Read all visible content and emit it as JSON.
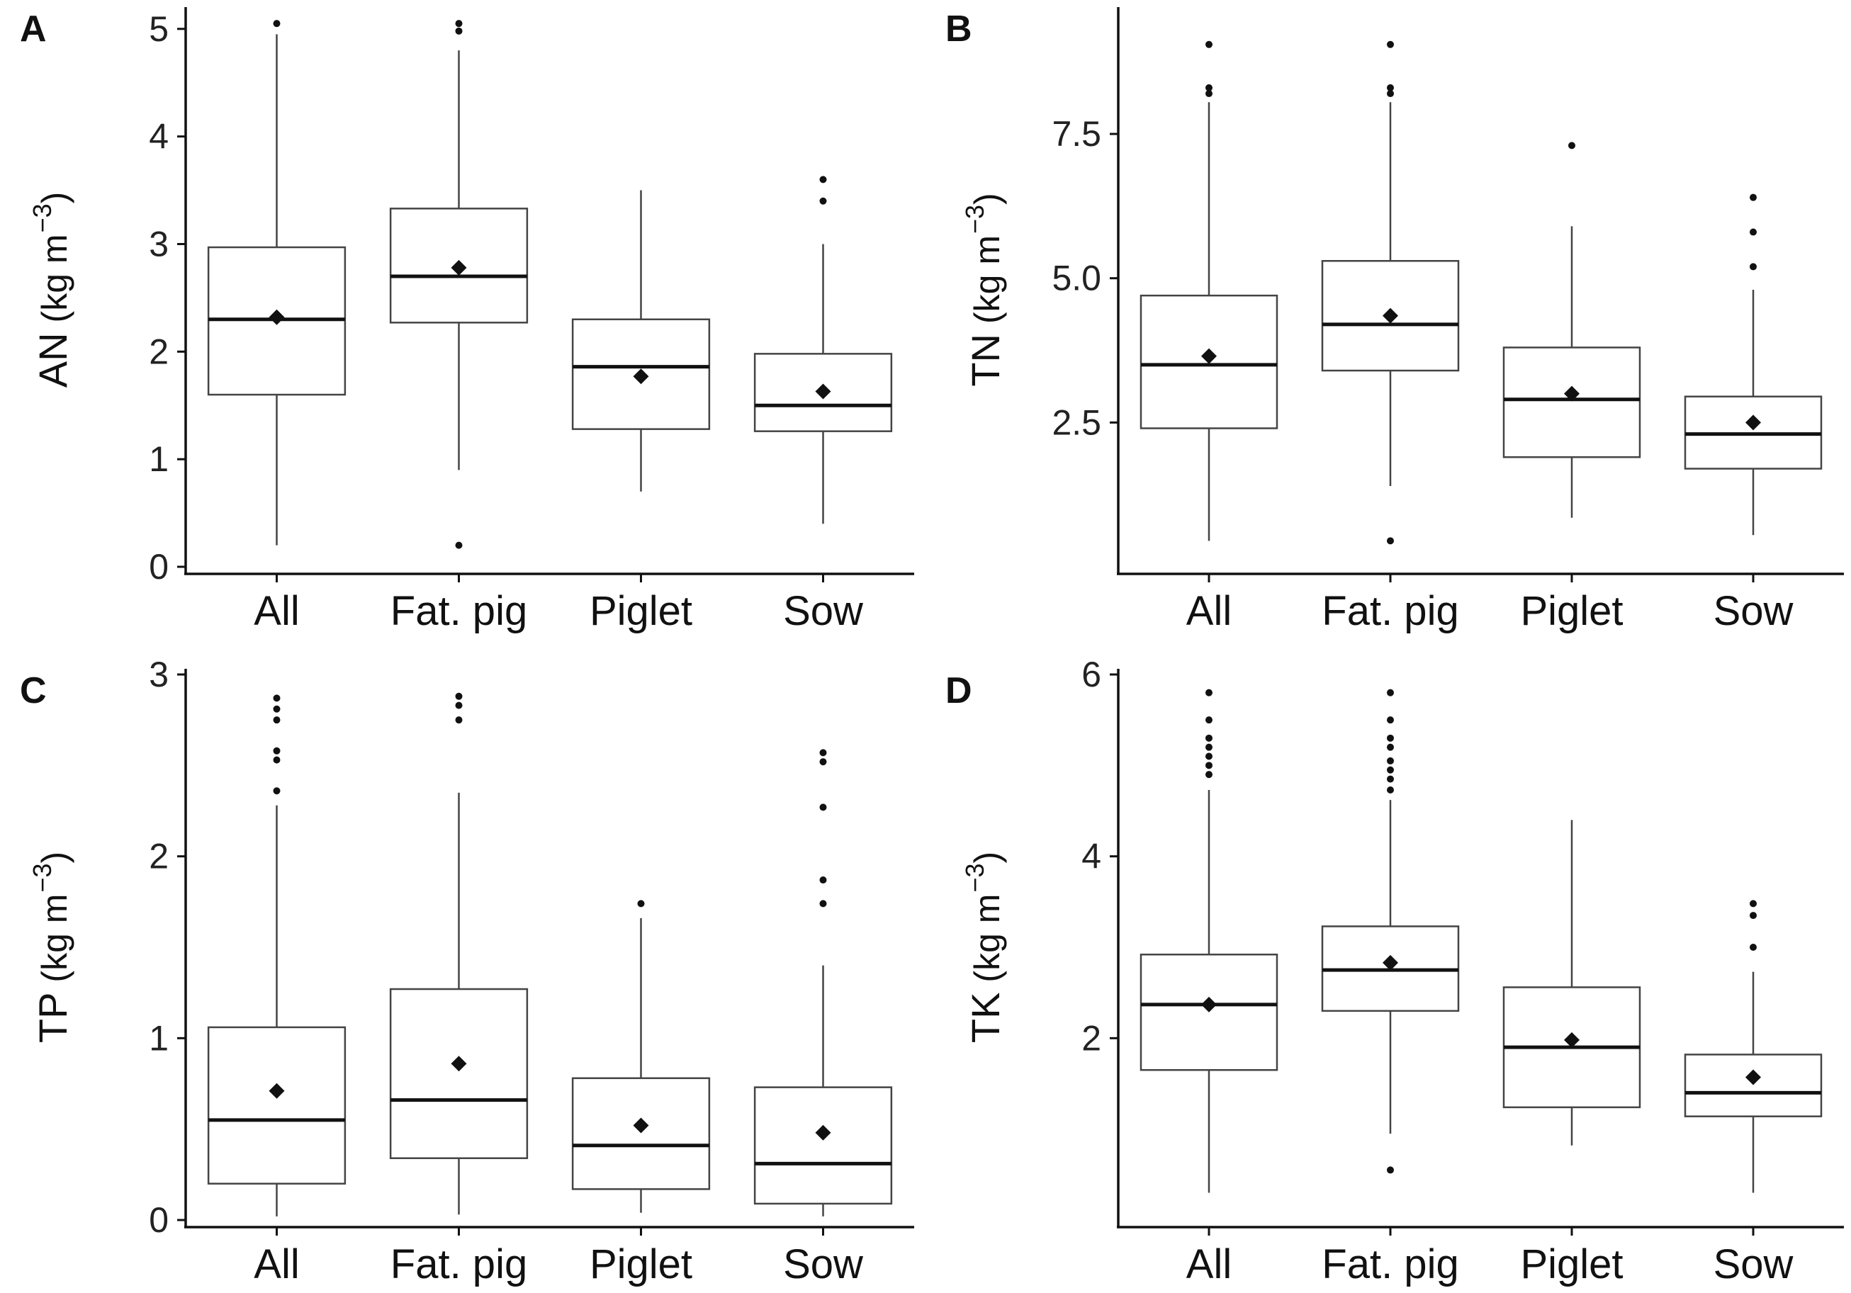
{
  "chart_data": [
    {
      "panel": "A",
      "type": "box",
      "ylabel_var": "AN",
      "ylabel_unit": "(kg m",
      "ylabel_exp": "−3",
      "ylabel_close": ")",
      "ylim": [
        0,
        5.15
      ],
      "yticks": [
        0,
        1,
        2,
        3,
        4,
        5
      ],
      "ytick_labels": [
        "0",
        "1",
        "2",
        "3",
        "4",
        "5"
      ],
      "categories": [
        "All",
        "Fat. pig",
        "Piglet",
        "Sow"
      ],
      "boxes": [
        {
          "min": 0.2,
          "q1": 1.6,
          "median": 2.3,
          "q3": 2.97,
          "max": 4.95,
          "mean": 2.32,
          "outliers": [
            5.05
          ]
        },
        {
          "min": 0.9,
          "q1": 2.27,
          "median": 2.7,
          "q3": 3.33,
          "max": 4.8,
          "mean": 2.78,
          "outliers": [
            4.98,
            5.05,
            0.2
          ]
        },
        {
          "min": 0.7,
          "q1": 1.28,
          "median": 1.86,
          "q3": 2.3,
          "max": 3.5,
          "mean": 1.77,
          "outliers": []
        },
        {
          "min": 0.4,
          "q1": 1.26,
          "median": 1.5,
          "q3": 1.98,
          "max": 3.0,
          "mean": 1.63,
          "outliers": [
            3.4,
            3.6
          ]
        }
      ]
    },
    {
      "panel": "B",
      "type": "box",
      "ylabel_var": "TN",
      "ylabel_unit": "(kg m",
      "ylabel_exp": "−3",
      "ylabel_close": ")",
      "ylim": [
        0,
        9.6
      ],
      "yticks": [
        2.5,
        5.0,
        7.5
      ],
      "ytick_labels": [
        "2.5",
        "5.0",
        "7.5"
      ],
      "categories": [
        "All",
        "Fat. pig",
        "Piglet",
        "Sow"
      ],
      "boxes": [
        {
          "min": 0.45,
          "q1": 2.4,
          "median": 3.5,
          "q3": 4.7,
          "max": 8.05,
          "mean": 3.65,
          "outliers": [
            8.2,
            8.3,
            9.05
          ]
        },
        {
          "min": 1.4,
          "q1": 3.4,
          "median": 4.2,
          "q3": 5.3,
          "max": 8.05,
          "mean": 4.35,
          "outliers": [
            8.2,
            8.3,
            9.05,
            0.45
          ]
        },
        {
          "min": 0.85,
          "q1": 1.9,
          "median": 2.9,
          "q3": 3.8,
          "max": 5.9,
          "mean": 3.0,
          "outliers": [
            7.3
          ]
        },
        {
          "min": 0.55,
          "q1": 1.7,
          "median": 2.3,
          "q3": 2.95,
          "max": 4.8,
          "mean": 2.5,
          "outliers": [
            5.2,
            5.8,
            6.4
          ]
        }
      ]
    },
    {
      "panel": "C",
      "type": "box",
      "ylabel_var": "TP",
      "ylabel_unit": "(kg m",
      "ylabel_exp": "−3",
      "ylabel_close": ")",
      "ylim": [
        0,
        3.0
      ],
      "yticks": [
        0,
        1,
        2,
        3
      ],
      "ytick_labels": [
        "0",
        "1",
        "2",
        "3"
      ],
      "categories": [
        "All",
        "Fat. pig",
        "Piglet",
        "Sow"
      ],
      "boxes": [
        {
          "min": 0.02,
          "q1": 0.2,
          "median": 0.55,
          "q3": 1.06,
          "max": 2.28,
          "mean": 0.71,
          "outliers": [
            2.36,
            2.53,
            2.58,
            2.75,
            2.81,
            2.87
          ]
        },
        {
          "min": 0.03,
          "q1": 0.34,
          "median": 0.66,
          "q3": 1.27,
          "max": 2.35,
          "mean": 0.86,
          "outliers": [
            2.75,
            2.83,
            2.88
          ]
        },
        {
          "min": 0.04,
          "q1": 0.17,
          "median": 0.41,
          "q3": 0.78,
          "max": 1.66,
          "mean": 0.52,
          "outliers": [
            1.74
          ]
        },
        {
          "min": 0.02,
          "q1": 0.09,
          "median": 0.31,
          "q3": 0.73,
          "max": 1.4,
          "mean": 0.48,
          "outliers": [
            1.74,
            1.87,
            2.27,
            2.52,
            2.57
          ]
        }
      ]
    },
    {
      "panel": "D",
      "type": "box",
      "ylabel_var": "TK",
      "ylabel_unit": "(kg m",
      "ylabel_exp": "−3",
      "ylabel_close": ")",
      "ylim": [
        0,
        6.0
      ],
      "yticks": [
        2,
        4,
        6
      ],
      "ytick_labels": [
        "2",
        "4",
        "6"
      ],
      "categories": [
        "All",
        "Fat. pig",
        "Piglet",
        "Sow"
      ],
      "boxes": [
        {
          "min": 0.3,
          "q1": 1.65,
          "median": 2.37,
          "q3": 2.92,
          "max": 4.73,
          "mean": 2.37,
          "outliers": [
            4.9,
            5.0,
            5.1,
            5.2,
            5.3,
            5.5,
            5.8
          ]
        },
        {
          "min": 0.95,
          "q1": 2.3,
          "median": 2.75,
          "q3": 3.23,
          "max": 4.62,
          "mean": 2.83,
          "outliers": [
            4.73,
            4.85,
            4.95,
            5.05,
            5.2,
            5.3,
            5.5,
            5.8,
            0.55
          ]
        },
        {
          "min": 0.82,
          "q1": 1.24,
          "median": 1.9,
          "q3": 2.56,
          "max": 4.4,
          "mean": 1.98,
          "outliers": []
        },
        {
          "min": 0.3,
          "q1": 1.14,
          "median": 1.4,
          "q3": 1.82,
          "max": 2.73,
          "mean": 1.57,
          "outliers": [
            3.0,
            3.35,
            3.48
          ]
        }
      ]
    }
  ]
}
